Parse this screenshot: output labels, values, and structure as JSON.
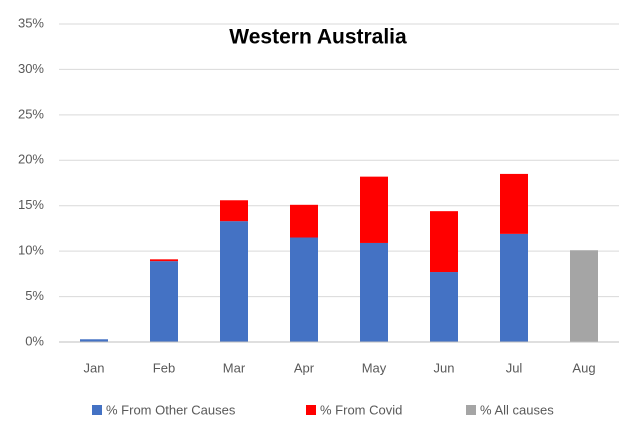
{
  "chart_data": {
    "type": "stacked_bar",
    "title": "Western Australia",
    "categories": [
      "Jan",
      "Feb",
      "Mar",
      "Apr",
      "May",
      "Jun",
      "Jul",
      "Aug"
    ],
    "series": [
      {
        "name": "% From Other Causes",
        "color": "#4472c4",
        "values": [
          0.3,
          8.9,
          13.3,
          11.5,
          10.9,
          7.7,
          11.9,
          null
        ]
      },
      {
        "name": "% From Covid",
        "color": "#ff0000",
        "values": [
          null,
          0.2,
          2.3,
          3.6,
          7.3,
          6.7,
          6.6,
          null
        ]
      },
      {
        "name": "% All causes",
        "color": "#a5a5a5",
        "values": [
          null,
          null,
          null,
          null,
          null,
          null,
          null,
          10.1
        ]
      }
    ],
    "ylim": [
      0,
      35
    ],
    "yticks": [
      {
        "value": 0,
        "label": "0%"
      },
      {
        "value": 5,
        "label": "5%"
      },
      {
        "value": 10,
        "label": "10%"
      },
      {
        "value": 15,
        "label": "15%"
      },
      {
        "value": 20,
        "label": "20%"
      },
      {
        "value": 25,
        "label": "25%"
      },
      {
        "value": 30,
        "label": "30%"
      },
      {
        "value": 35,
        "label": "35%"
      }
    ],
    "grid": true
  }
}
